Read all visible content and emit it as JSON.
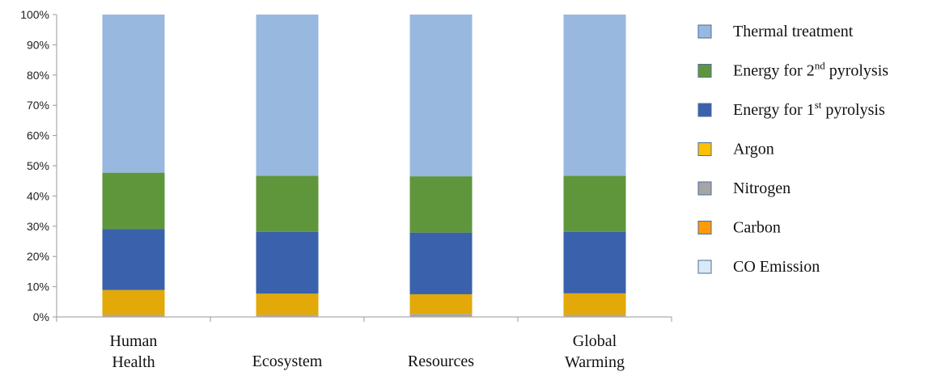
{
  "chart_data": {
    "type": "bar",
    "stacked": true,
    "percent": true,
    "categories": [
      [
        "Human",
        "Health"
      ],
      [
        "Ecosystem"
      ],
      [
        "Resources"
      ],
      [
        "Global",
        "Warming"
      ]
    ],
    "y_ticks": [
      "0%",
      "10%",
      "20%",
      "30%",
      "40%",
      "50%",
      "60%",
      "70%",
      "80%",
      "90%",
      "100%"
    ],
    "ylim": [
      0,
      100
    ],
    "series": [
      {
        "name": "CO Emission",
        "color": "#dbe8f6",
        "values": [
          0,
          0,
          0,
          0
        ]
      },
      {
        "name": "Carbon",
        "color": "#f79a1e",
        "values": [
          0.2,
          0.2,
          0.2,
          0.2
        ]
      },
      {
        "name": "Nitrogen",
        "color": "#a5a5a5",
        "values": [
          0.5,
          0.5,
          0.8,
          0.5
        ]
      },
      {
        "name": "Argon",
        "color": "#e2a908",
        "values": [
          8.2,
          7.0,
          6.5,
          7.1
        ]
      },
      {
        "name": "Energy for 1st pyrolysis",
        "color": "#3a61ab",
        "values": [
          20.2,
          20.4,
          20.4,
          20.3
        ]
      },
      {
        "name": "Energy for 2nd pyrolysis",
        "color": "#5f963c",
        "values": [
          18.6,
          18.6,
          18.6,
          18.6
        ]
      },
      {
        "name": "Thermal treatment",
        "color": "#98b8e0",
        "values": [
          52.3,
          53.3,
          53.5,
          53.3
        ]
      }
    ],
    "legend": [
      {
        "parts": [
          {
            "t": "Thermal treatment"
          }
        ],
        "color": "#98b8e0"
      },
      {
        "parts": [
          {
            "t": "Energy for 2"
          },
          {
            "t": "nd",
            "sup": true
          },
          {
            "t": " pyrolysis"
          }
        ],
        "color": "#5f963c"
      },
      {
        "parts": [
          {
            "t": "Energy for 1"
          },
          {
            "t": "st",
            "sup": true
          },
          {
            "t": " pyrolysis"
          }
        ],
        "color": "#3a61ab"
      },
      {
        "parts": [
          {
            "t": "Argon"
          }
        ],
        "color": "#ffc000"
      },
      {
        "parts": [
          {
            "t": "Nitrogen"
          }
        ],
        "color": "#a5a5a5"
      },
      {
        "parts": [
          {
            "t": "Carbon"
          }
        ],
        "color": "#ff9a0a"
      },
      {
        "parts": [
          {
            "t": "CO Emission"
          }
        ],
        "color": "#dbe8f6"
      }
    ],
    "legend_position": "right",
    "grid": false
  }
}
